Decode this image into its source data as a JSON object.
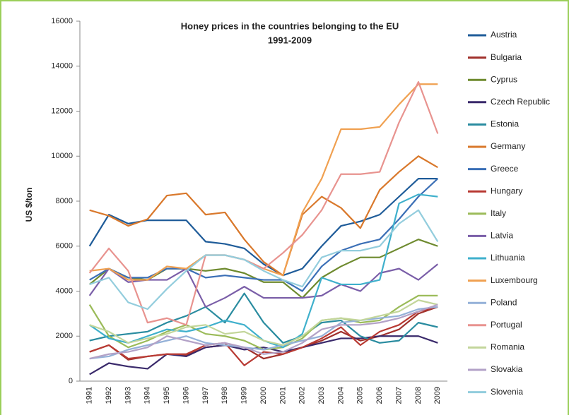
{
  "chart_data": {
    "type": "line",
    "title": "Honey prices in the countries belonging to the EU",
    "subtitle": "1991-2009",
    "y_label": "US $/ton",
    "categories": [
      "1991",
      "1992",
      "1993",
      "1994",
      "1995",
      "1996",
      "1997",
      "1998",
      "1999",
      "2000",
      "2001",
      "2002",
      "2003",
      "2004",
      "2005",
      "2006",
      "2007",
      "2008",
      "2009"
    ],
    "ylim": [
      0,
      16000
    ],
    "yticks": [
      0,
      2000,
      4000,
      6000,
      8000,
      10000,
      12000,
      14000,
      16000
    ],
    "legend": "right",
    "series": [
      {
        "name": "Austria",
        "color": "#1f5c99",
        "values": [
          6000,
          7400,
          7000,
          7150,
          7150,
          7150,
          6200,
          6100,
          5900,
          5200,
          4700,
          5000,
          6000,
          6900,
          7100,
          7400,
          8200,
          9000,
          9000
        ]
      },
      {
        "name": "Bulgaria",
        "color": "#a0302b",
        "values": [
          1300,
          1600,
          950,
          1100,
          1200,
          1150,
          1500,
          1600,
          1500,
          1000,
          1200,
          1500,
          1800,
          2200,
          1800,
          2000,
          2300,
          3000,
          3300
        ]
      },
      {
        "name": "Cyprus",
        "color": "#6e8a2e",
        "values": [
          4300,
          5000,
          4600,
          4500,
          5000,
          5000,
          4900,
          5000,
          4800,
          4400,
          4400,
          3700,
          4600,
          5100,
          5500,
          5500,
          5900,
          6300,
          6000
        ]
      },
      {
        "name": "Czech Republic",
        "color": "#3a2a6b",
        "values": [
          300,
          800,
          650,
          550,
          1200,
          1100,
          1500,
          1600,
          1400,
          1500,
          1300,
          1500,
          1700,
          1900,
          1900,
          2000,
          2000,
          2000,
          1700
        ]
      },
      {
        "name": "Estonia",
        "color": "#2a8ca0",
        "values": [
          1800,
          2000,
          2100,
          2200,
          2600,
          2900,
          3300,
          2600,
          3900,
          2600,
          1700,
          2000,
          2600,
          2700,
          2000,
          1700,
          1800,
          2600,
          2400
        ]
      },
      {
        "name": "Germany",
        "color": "#d9782b",
        "values": [
          7600,
          7350,
          6900,
          7200,
          8250,
          8350,
          7400,
          7500,
          6300,
          5300,
          4700,
          7400,
          8200,
          7700,
          6800,
          8500,
          9300,
          10000,
          9500
        ]
      },
      {
        "name": "Greece",
        "color": "#3b6fb6",
        "values": [
          4500,
          5000,
          4600,
          4600,
          5000,
          5000,
          4600,
          4700,
          4600,
          4500,
          4500,
          4000,
          5100,
          5800,
          6100,
          6300,
          7200,
          8200,
          9000
        ]
      },
      {
        "name": "Hungary",
        "color": "#b83a33",
        "values": [
          1300,
          1600,
          1000,
          1100,
          1200,
          1200,
          1600,
          1700,
          700,
          1300,
          1200,
          1500,
          1900,
          2400,
          1600,
          2200,
          2500,
          3100,
          3300
        ]
      },
      {
        "name": "Italy",
        "color": "#9bbb59",
        "values": [
          3400,
          2000,
          1500,
          1800,
          2200,
          2500,
          2100,
          2000,
          1800,
          1400,
          1500,
          1900,
          2700,
          2800,
          2600,
          2700,
          3300,
          3800,
          3800
        ]
      },
      {
        "name": "Latvia",
        "color": "#7a5ea8",
        "values": [
          3800,
          5000,
          4400,
          4500,
          4500,
          5000,
          3300,
          3700,
          4200,
          3700,
          3700,
          3700,
          3800,
          4300,
          4000,
          4800,
          5000,
          4500,
          5200
        ]
      },
      {
        "name": "Lithuania",
        "color": "#3fb0cc",
        "values": [
          2500,
          1900,
          1700,
          2000,
          2300,
          2200,
          2400,
          2700,
          2500,
          1800,
          1500,
          2100,
          4600,
          4300,
          4300,
          4500,
          7900,
          8300,
          8200
        ]
      },
      {
        "name": "Luxembourg",
        "color": "#f0a050",
        "values": [
          4900,
          5000,
          4500,
          4500,
          5100,
          5000,
          5600,
          5600,
          5400,
          5000,
          4700,
          7500,
          9000,
          11200,
          11200,
          11300,
          12300,
          13200,
          13200
        ]
      },
      {
        "name": "Poland",
        "color": "#94b1d8",
        "values": [
          1000,
          1100,
          1400,
          1600,
          1800,
          2000,
          1700,
          1600,
          1500,
          1400,
          1600,
          1800,
          2000,
          2600,
          2700,
          2800,
          2900,
          3200,
          3300
        ]
      },
      {
        "name": "Portugal",
        "color": "#e8938f",
        "values": [
          4800,
          5900,
          4900,
          2600,
          2800,
          2500,
          5600,
          5600,
          5400,
          5000,
          5700,
          6500,
          7600,
          9200,
          9200,
          9300,
          11500,
          13300,
          11000
        ]
      },
      {
        "name": "Romania",
        "color": "#c3d69b",
        "values": [
          2500,
          2200,
          1700,
          1900,
          2100,
          2400,
          2500,
          2100,
          2200,
          1800,
          1600,
          2000,
          2700,
          2800,
          2700,
          2900,
          3100,
          3600,
          3400
        ]
      },
      {
        "name": "Slovakia",
        "color": "#b3a2c7",
        "values": [
          1000,
          1200,
          1300,
          1500,
          2000,
          1800,
          1600,
          1700,
          1500,
          1200,
          1300,
          1700,
          2300,
          2500,
          2500,
          2600,
          2800,
          3100,
          3400
        ]
      },
      {
        "name": "Slovenia",
        "color": "#93cddd",
        "values": [
          4300,
          4600,
          3500,
          3200,
          4100,
          4900,
          5600,
          5600,
          5400,
          4900,
          4500,
          4200,
          5500,
          5800,
          5800,
          6000,
          7000,
          7600,
          6200
        ]
      }
    ]
  }
}
